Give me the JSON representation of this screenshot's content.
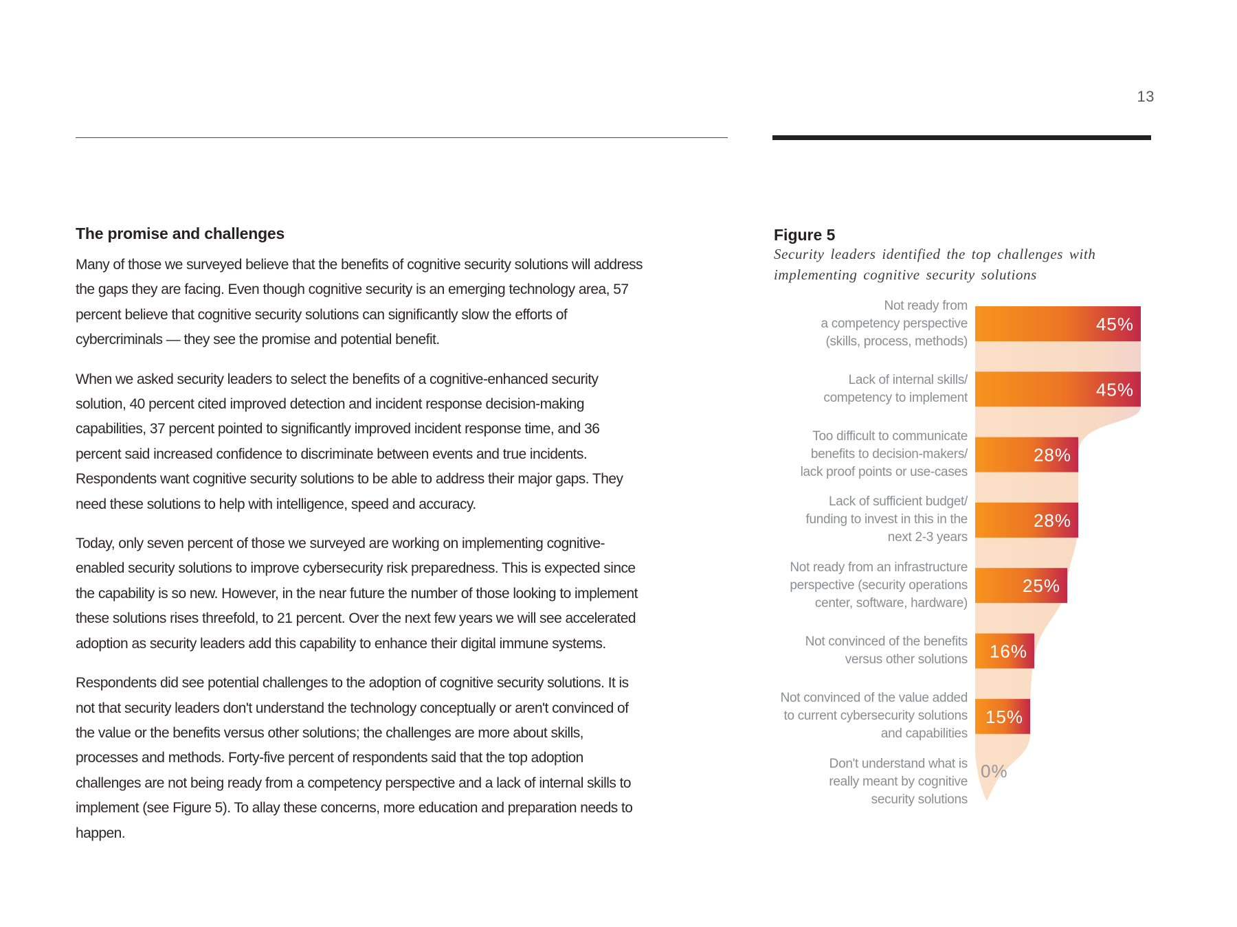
{
  "page": {
    "number": "13"
  },
  "article": {
    "heading": "The promise and challenges",
    "paragraphs": [
      "Many of those we surveyed believe that the benefits of cognitive security solutions will address the gaps they are facing. Even though cognitive security is an emerging technology area, 57 percent believe that cognitive security solutions can significantly slow the efforts of cybercriminals — they see the promise and potential benefit.",
      "When we asked security leaders to select the benefits of a cognitive-enhanced security solution, 40 percent cited improved detection and incident response decision-making capabilities, 37 percent pointed to significantly improved incident response time, and 36 percent said increased confidence to discriminate between events and true incidents. Respondents want cognitive security solutions to be able to address their major gaps. They need these solutions to help with intelligence, speed and accuracy.",
      "Today, only seven percent of those we surveyed are working on implementing cognitive-enabled security solutions to improve cybersecurity risk preparedness. This is expected since the capability is so new. However, in the near future the number of those looking to implement these solutions rises threefold, to 21 percent. Over the next few years we will see accelerated adoption as security leaders add this capability to enhance their digital immune systems.",
      "Respondents did see potential challenges to the adoption of cognitive security solutions. It is not that security leaders don't understand the technology conceptually or aren't convinced of the value or the benefits versus other solutions; the challenges are more about skills, processes and methods. Forty-five percent of respondents said that the top adoption challenges are not being ready from a competency perspective and a lack of internal skills to implement (see Figure 5). To allay these concerns, more education and preparation needs to happen."
    ]
  },
  "figure": {
    "label": "Figure 5",
    "caption": "Security leaders identified the top challenges with implementing cognitive security solutions"
  },
  "chart_data": {
    "type": "bar",
    "orientation": "horizontal",
    "title": "Figure 5",
    "subtitle": "Security leaders identified the top challenges with implementing cognitive security solutions",
    "xlim": [
      0,
      45
    ],
    "grid": false,
    "legend": "none",
    "categories": [
      [
        "Not ready from",
        "a competency perspective",
        "(skills, process, methods)"
      ],
      [
        "Lack of internal skills/",
        "competency to implement"
      ],
      [
        "Too difficult to communicate",
        "benefits to decision-makers/",
        "lack proof points or use-cases"
      ],
      [
        "Lack of sufficient budget/",
        "funding to invest in this in the",
        "next 2-3 years"
      ],
      [
        "Not ready from an infrastructure",
        "perspective (security operations",
        "center, software, hardware)"
      ],
      [
        "Not convinced of the benefits",
        "versus other solutions"
      ],
      [
        "Not convinced of the value added",
        "to current cybersecurity solutions",
        "and capabilities"
      ],
      [
        "Don't understand what is",
        "really meant by cognitive",
        "security solutions"
      ]
    ],
    "values": [
      45,
      45,
      28,
      28,
      25,
      16,
      15,
      0
    ],
    "value_labels": [
      "45%",
      "45%",
      "28%",
      "28%",
      "25%",
      "16%",
      "15%",
      "0%"
    ],
    "colors": {
      "bar_gradient": [
        "#F7941E",
        "#EC7424",
        "#C32849"
      ],
      "funnel_gradient": [
        "#FBDFC6",
        "#F8DAC3",
        "#F2D3CC"
      ],
      "category_label": "#8B8D90",
      "value_label_in_bar": "#FFFFFF",
      "value_label_zero": "#95979A"
    }
  }
}
